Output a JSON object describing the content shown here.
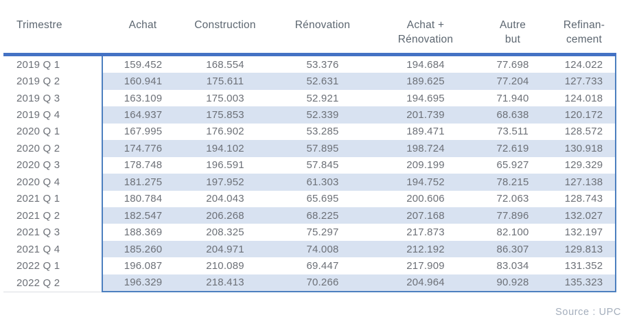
{
  "table": {
    "columns": [
      {
        "id": "trimestre",
        "label": "Trimestre"
      },
      {
        "id": "achat",
        "label": "Achat"
      },
      {
        "id": "construction",
        "label": "Construction"
      },
      {
        "id": "renovation",
        "label": "Rénovation"
      },
      {
        "id": "achat_renovation",
        "label": "Achat +\nRénovation"
      },
      {
        "id": "autre_but",
        "label": "Autre\nbut"
      },
      {
        "id": "refinancement",
        "label": "Refinan-\ncement"
      }
    ],
    "rows": [
      {
        "trimestre": "2019 Q 1",
        "values": [
          "159.452",
          "168.554",
          "53.376",
          "194.684",
          "77.698",
          "124.022"
        ]
      },
      {
        "trimestre": "2019 Q 2",
        "values": [
          "160.941",
          "175.611",
          "52.631",
          "189.625",
          "77.204",
          "127.733"
        ]
      },
      {
        "trimestre": "2019 Q 3",
        "values": [
          "163.109",
          "175.003",
          "52.921",
          "194.695",
          "71.940",
          "124.018"
        ]
      },
      {
        "trimestre": "2019 Q 4",
        "values": [
          "164.937",
          "175.853",
          "52.339",
          "201.739",
          "68.638",
          "120.172"
        ]
      },
      {
        "trimestre": "2020 Q 1",
        "values": [
          "167.995",
          "176.902",
          "53.285",
          "189.471",
          "73.511",
          "128.572"
        ]
      },
      {
        "trimestre": "2020 Q 2",
        "values": [
          "174.776",
          "194.102",
          "57.895",
          "198.724",
          "72.619",
          "130.918"
        ]
      },
      {
        "trimestre": "2020 Q 3",
        "values": [
          "178.748",
          "196.591",
          "57.845",
          "209.199",
          "65.927",
          "129.329"
        ]
      },
      {
        "trimestre": "2020 Q 4",
        "values": [
          "181.275",
          "197.952",
          "61.303",
          "194.752",
          "78.215",
          "127.138"
        ]
      },
      {
        "trimestre": "2021 Q 1",
        "values": [
          "180.784",
          "204.043",
          "65.695",
          "200.606",
          "72.063",
          "128.743"
        ]
      },
      {
        "trimestre": "2021 Q 2",
        "values": [
          "182.547",
          "206.268",
          "68.225",
          "207.168",
          "77.896",
          "132.027"
        ]
      },
      {
        "trimestre": "2021 Q 3",
        "values": [
          "188.369",
          "208.325",
          "75.297",
          "217.873",
          "82.100",
          "132.197"
        ]
      },
      {
        "trimestre": "2021 Q 4",
        "values": [
          "185.260",
          "204.971",
          "74.008",
          "212.192",
          "86.307",
          "129.813"
        ]
      },
      {
        "trimestre": "2022 Q 1",
        "values": [
          "196.087",
          "210.089",
          "69.447",
          "217.909",
          "83.034",
          "131.352"
        ]
      },
      {
        "trimestre": "2022 Q 2",
        "values": [
          "196.329",
          "218.413",
          "70.266",
          "204.964",
          "90.928",
          "135.323"
        ]
      }
    ],
    "colors": {
      "accent_line": "#4472C4",
      "box_border": "#4C7FBF",
      "stripe": "#D8E2F1",
      "header_text": "#5C6670",
      "body_text": "#6C7077"
    }
  },
  "footer": {
    "source_label": "Source : UPC",
    "color": "#A4AEBC"
  },
  "chart_data": {
    "type": "table",
    "title": "",
    "categories": [
      "2019 Q 1",
      "2019 Q 2",
      "2019 Q 3",
      "2019 Q 4",
      "2020 Q 1",
      "2020 Q 2",
      "2020 Q 3",
      "2020 Q 4",
      "2021 Q 1",
      "2021 Q 2",
      "2021 Q 3",
      "2021 Q 4",
      "2022 Q 1",
      "2022 Q 2"
    ],
    "series": [
      {
        "name": "Achat",
        "values": [
          159.452,
          160.941,
          163.109,
          164.937,
          167.995,
          174.776,
          178.748,
          181.275,
          180.784,
          182.547,
          188.369,
          185.26,
          196.087,
          196.329
        ]
      },
      {
        "name": "Construction",
        "values": [
          168.554,
          175.611,
          175.003,
          175.853,
          176.902,
          194.102,
          196.591,
          197.952,
          204.043,
          206.268,
          208.325,
          204.971,
          210.089,
          218.413
        ]
      },
      {
        "name": "Rénovation",
        "values": [
          53.376,
          52.631,
          52.921,
          52.339,
          53.285,
          57.895,
          57.845,
          61.303,
          65.695,
          68.225,
          75.297,
          74.008,
          69.447,
          70.266
        ]
      },
      {
        "name": "Achat + Rénovation",
        "values": [
          194.684,
          189.625,
          194.695,
          201.739,
          189.471,
          198.724,
          209.199,
          194.752,
          200.606,
          207.168,
          217.873,
          212.192,
          217.909,
          204.964
        ]
      },
      {
        "name": "Autre but",
        "values": [
          77.698,
          77.204,
          71.94,
          68.638,
          73.511,
          72.619,
          65.927,
          78.215,
          72.063,
          77.896,
          82.1,
          86.307,
          83.034,
          90.928
        ]
      },
      {
        "name": "Refinancement",
        "values": [
          124.022,
          127.733,
          124.018,
          120.172,
          128.572,
          130.918,
          129.329,
          127.138,
          128.743,
          132.027,
          132.197,
          129.813,
          131.352,
          135.323
        ]
      }
    ],
    "annotations": [
      "Source : UPC"
    ]
  }
}
